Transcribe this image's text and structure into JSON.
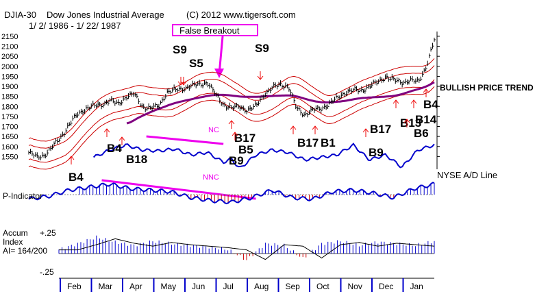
{
  "chart_data": {
    "type": "line",
    "symbol": "DJIA-30",
    "title": "Dow Jones Industrial Average",
    "copyright": "(C) 2012 www.tigersoft.com",
    "date_range": "1/ 2/ 1986 - 1/ 22/ 1987",
    "ylim": [
      1500,
      2160
    ],
    "y_ticks": [
      2150,
      2100,
      2050,
      2000,
      1950,
      1900,
      1850,
      1800,
      1750,
      1700,
      1650,
      1600,
      1550
    ],
    "months": [
      "Feb",
      "Mar",
      "Apr",
      "May",
      "Jun",
      "Jul",
      "Aug",
      "Sep",
      "Oct",
      "Nov",
      "Dec",
      "Jan"
    ],
    "price_series": {
      "name": "DJIA closes",
      "t": [
        0,
        0.02,
        0.04,
        0.06,
        0.08,
        0.1,
        0.12,
        0.14,
        0.16,
        0.18,
        0.2,
        0.22,
        0.24,
        0.26,
        0.28,
        0.3,
        0.32,
        0.34,
        0.36,
        0.38,
        0.4,
        0.42,
        0.44,
        0.46,
        0.48,
        0.5,
        0.52,
        0.54,
        0.56,
        0.58,
        0.6,
        0.62,
        0.64,
        0.66,
        0.68,
        0.7,
        0.72,
        0.74,
        0.76,
        0.78,
        0.8,
        0.82,
        0.84,
        0.86,
        0.88,
        0.9,
        0.92,
        0.94,
        0.96,
        0.98,
        1.0
      ],
      "v": [
        1570,
        1545,
        1560,
        1600,
        1650,
        1710,
        1760,
        1790,
        1800,
        1810,
        1830,
        1810,
        1850,
        1860,
        1800,
        1790,
        1800,
        1870,
        1880,
        1890,
        1900,
        1910,
        1920,
        1860,
        1810,
        1790,
        1800,
        1780,
        1800,
        1860,
        1890,
        1910,
        1900,
        1790,
        1760,
        1780,
        1790,
        1810,
        1840,
        1870,
        1880,
        1880,
        1900,
        1920,
        1950,
        1930,
        1920,
        1930,
        1920,
        2000,
        2130
      ]
    },
    "ad_line": {
      "name": "NYSE A/D Line",
      "t": [
        0.16,
        0.2,
        0.24,
        0.28,
        0.32,
        0.36,
        0.4,
        0.44,
        0.48,
        0.5,
        0.52,
        0.56,
        0.6,
        0.64,
        0.68,
        0.72,
        0.76,
        0.8,
        0.84,
        0.88,
        0.92,
        0.96,
        1.0
      ],
      "v": [
        0.45,
        0.6,
        0.7,
        0.6,
        0.58,
        0.62,
        0.5,
        0.55,
        0.35,
        0.42,
        0.22,
        0.5,
        0.6,
        0.55,
        0.4,
        0.45,
        0.5,
        0.7,
        0.4,
        0.5,
        0.25,
        0.6,
        0.7
      ]
    },
    "signals": [
      {
        "label": "S9",
        "t": 0.335,
        "kind": "sell"
      },
      {
        "label": "S5",
        "t": 0.365,
        "kind": "sell"
      },
      {
        "label": "S9",
        "t": 0.53,
        "kind": "sell"
      },
      {
        "label": "B4",
        "t": 0.09,
        "kind": "buy"
      },
      {
        "label": "B4",
        "t": 0.21,
        "kind": "buy"
      },
      {
        "label": "B18",
        "t": 0.24,
        "kind": "buy"
      },
      {
        "label": "B17",
        "t": 0.45,
        "kind": "buy"
      },
      {
        "label": "B5",
        "t": 0.45,
        "kind": "buy"
      },
      {
        "label": "B9",
        "t": 0.45,
        "kind": "buy"
      },
      {
        "label": "B17",
        "t": 0.62,
        "kind": "buy"
      },
      {
        "label": "B1",
        "t": 0.66,
        "kind": "buy"
      },
      {
        "label": "B9",
        "t": 0.79,
        "kind": "buy"
      },
      {
        "label": "B17",
        "t": 0.8,
        "kind": "buy"
      },
      {
        "label": "B13",
        "t": 0.88,
        "kind": "buy"
      },
      {
        "label": "B14",
        "t": 0.92,
        "kind": "buy"
      },
      {
        "label": "B6",
        "t": 0.93,
        "kind": "buy"
      },
      {
        "label": "B4",
        "t": 0.96,
        "kind": "buy"
      }
    ],
    "annotations": {
      "false_breakout": "False Breakout",
      "trend": "BULLISH PRICE TREND",
      "nc": "NC",
      "nnc": "NNC",
      "ad_label": "NYSE A/D Line"
    },
    "p_indicator": {
      "label": "P-Indicator",
      "t": [
        0,
        0.05,
        0.1,
        0.15,
        0.2,
        0.25,
        0.3,
        0.35,
        0.4,
        0.45,
        0.5,
        0.55,
        0.6,
        0.65,
        0.7,
        0.75,
        0.8,
        0.85,
        0.9,
        0.95,
        1.0
      ],
      "v": [
        -0.3,
        -0.1,
        0.3,
        0.5,
        0.7,
        0.4,
        0.3,
        0.2,
        -0.2,
        -0.4,
        -0.5,
        -0.2,
        0.3,
        -0.2,
        -0.3,
        0.2,
        0.3,
        0.1,
        -0.2,
        0.4,
        0.7
      ]
    },
    "accum_index": {
      "label_line1": "Accum",
      "label_line2": "Index",
      "label_line3": "AI= 164/200",
      "top_label": "+.25",
      "bottom_label": "-.25",
      "t": [
        0,
        0.05,
        0.1,
        0.15,
        0.2,
        0.25,
        0.3,
        0.35,
        0.4,
        0.45,
        0.5,
        0.55,
        0.6,
        0.65,
        0.7,
        0.75,
        0.8,
        0.85,
        0.9,
        0.95,
        1.0
      ],
      "v": [
        0.05,
        0.12,
        0.2,
        0.14,
        0.1,
        0.15,
        0.12,
        0.1,
        0.08,
        0.05,
        -0.08,
        0.12,
        0.1,
        -0.06,
        0.12,
        0.15,
        0.1,
        0.14,
        0.12,
        0.1,
        0.15
      ]
    },
    "colors": {
      "price": "#000000",
      "band": "#cc0000",
      "ma": "#800080",
      "ad": "#0000cc",
      "signal_up": "#ee0000",
      "annotation": "#ee00ee",
      "pind_pos": "#0000cc",
      "pind_neg": "#cc0000"
    }
  }
}
